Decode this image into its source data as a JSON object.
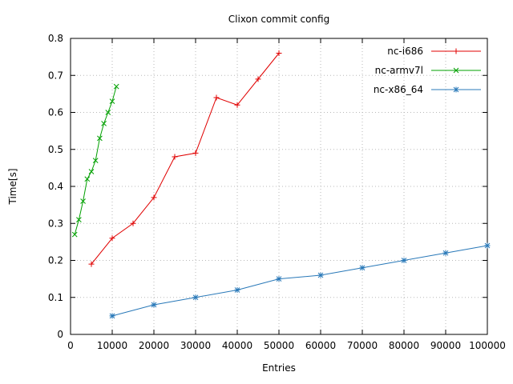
{
  "chart_data": {
    "type": "line",
    "title": "Clixon commit config",
    "xlabel": "Entries",
    "ylabel": "Time[s]",
    "xlim": [
      0,
      100000
    ],
    "ylim": [
      0,
      0.8
    ],
    "xticks": [
      0,
      10000,
      20000,
      30000,
      40000,
      50000,
      60000,
      70000,
      80000,
      90000,
      100000
    ],
    "xtick_labels": [
      "0",
      "10000",
      "20000",
      "30000",
      "40000",
      "50000",
      "60000",
      "70000",
      "80000",
      "90000",
      "100000"
    ],
    "yticks": [
      0,
      0.1,
      0.2,
      0.3,
      0.4,
      0.5,
      0.6,
      0.7,
      0.8
    ],
    "ytick_labels": [
      "0",
      "0.1",
      "0.2",
      "0.3",
      "0.4",
      "0.5",
      "0.6",
      "0.7",
      "0.8"
    ],
    "grid": true,
    "legend_position": "top-right",
    "colors": {
      "axis": "#000000",
      "grid": "#b8b8b8",
      "background": "#ffffff"
    },
    "series": [
      {
        "name": "nc-i686",
        "color": "#e00000",
        "marker": "plus",
        "x": [
          5000,
          10000,
          15000,
          20000,
          25000,
          30000,
          35000,
          40000,
          45000,
          50000
        ],
        "y": [
          0.19,
          0.26,
          0.3,
          0.37,
          0.48,
          0.49,
          0.64,
          0.62,
          0.69,
          0.76
        ]
      },
      {
        "name": "nc-armv7l",
        "color": "#00a000",
        "marker": "x",
        "x": [
          1000,
          2000,
          3000,
          4000,
          5000,
          6000,
          7000,
          8000,
          9000,
          10000,
          11000
        ],
        "y": [
          0.27,
          0.31,
          0.36,
          0.42,
          0.44,
          0.47,
          0.53,
          0.57,
          0.6,
          0.63,
          0.67
        ]
      },
      {
        "name": "nc-x86_64",
        "color": "#2878b8",
        "marker": "asterisk",
        "x": [
          10000,
          20000,
          30000,
          40000,
          50000,
          60000,
          70000,
          80000,
          90000,
          100000
        ],
        "y": [
          0.05,
          0.08,
          0.1,
          0.12,
          0.15,
          0.16,
          0.18,
          0.2,
          0.22,
          0.24
        ]
      }
    ]
  }
}
